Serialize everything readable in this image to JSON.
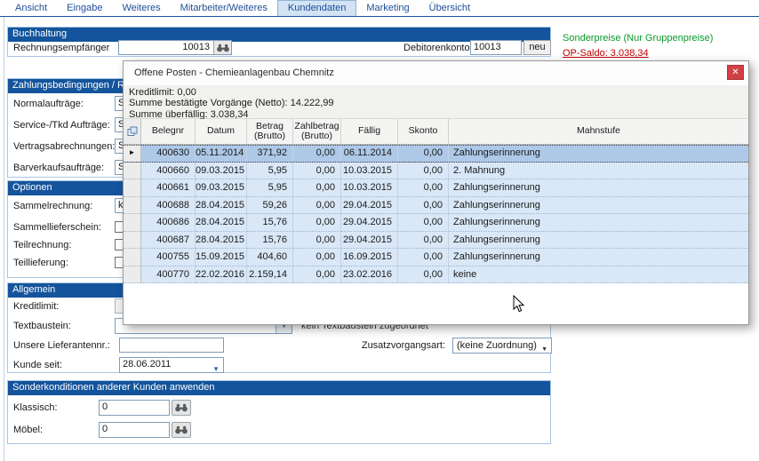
{
  "colors": {
    "accent_blue": "#14549c",
    "tab_text": "#1f4e96",
    "tab_selected_bg": "#d2e3f3",
    "green": "#089a2a",
    "red": "#c00000",
    "close_red": "#d04046",
    "row_blue": "#d9e7f7",
    "row_selected": "#aec9e8"
  },
  "tabs": {
    "items": [
      {
        "label": "Ansicht",
        "selected": false
      },
      {
        "label": "Eingabe",
        "selected": false
      },
      {
        "label": "Weiteres",
        "selected": false
      },
      {
        "label": "Mitarbeiter/Weiteres",
        "selected": false
      },
      {
        "label": "Kundendaten",
        "selected": true
      },
      {
        "label": "Marketing",
        "selected": false
      },
      {
        "label": "Übersicht",
        "selected": false
      }
    ]
  },
  "right_info": {
    "sonderpreise": "Sonderpreise (Nur Gruppenpreise)",
    "op_saldo": "OP-Saldo: 3.038,34"
  },
  "buchhaltung": {
    "title": "Buchhaltung",
    "rechnungsempfaenger_label": "Rechnungsempfänger",
    "rechnungsempfaenger_value": "10013",
    "debitorenkonto_label": "Debitorenkonto:",
    "debitorenkonto_value": "10013",
    "neu_button": "neu"
  },
  "zahlungsbedingungen": {
    "title": "Zahlungsbedingungen / Rechn",
    "rows": [
      {
        "label": "Normalaufträge:",
        "value": "S"
      },
      {
        "label": "Service-/Tkd Aufträge:",
        "value": "S"
      },
      {
        "label": "Vertragsabrechnungen:",
        "value": "S"
      },
      {
        "label": "Barverkaufsaufträge:",
        "value": "S"
      }
    ]
  },
  "optionen": {
    "title": "Optionen",
    "sammelrechnung_label": "Sammelrechnung:",
    "sammelrechnung_value": "k",
    "checkbox_labels": [
      "Sammellieferschein:",
      "Teilrechnung:",
      "Teillieferung:"
    ]
  },
  "allgemein": {
    "title": "Allgemein",
    "kreditlimit_label": "Kreditlimit:",
    "textbaustein_label": "Textbaustein:",
    "textbaustein_note": "kein Textbaustein zugeordnet",
    "lieferantennr_label": "Unsere Lieferantennr.:",
    "lieferantennr_value": "",
    "zusatzvorgangsart_label": "Zusatzvorgangsart:",
    "zusatzvorgangsart_value": "(keine Zuordnung)",
    "kunde_seit_label": "Kunde seit:",
    "kunde_seit_value": "28.06.2011"
  },
  "sonderkonditionen": {
    "title": "Sonderkonditionen anderer Kunden anwenden",
    "klassisch_label": "Klassisch:",
    "klassisch_value": "0",
    "moebel_label": "Möbel:",
    "moebel_value": "0"
  },
  "dialog": {
    "title": "Offene Posten - Chemieanlagenbau Chemnitz",
    "info_lines": [
      "Kreditlimit: 0,00",
      "Summe bestätigte Vorgänge (Netto): 14.222,99",
      "Summe überfällig: 3.038,34"
    ],
    "grid": {
      "columns": [
        "Belegnr",
        "Datum",
        "Betrag (Brutto)",
        "Zahlbetrag (Brutto)",
        "Fällig",
        "Skonto",
        "Mahnstufe"
      ],
      "selected_row": 0,
      "rows": [
        [
          "400630",
          "05.11.2014",
          "371,92",
          "0,00",
          "06.11.2014",
          "0,00",
          "Zahlungserinnerung"
        ],
        [
          "400660",
          "09.03.2015",
          "5,95",
          "0,00",
          "10.03.2015",
          "0,00",
          "2. Mahnung"
        ],
        [
          "400661",
          "09.03.2015",
          "5,95",
          "0,00",
          "10.03.2015",
          "0,00",
          "Zahlungserinnerung"
        ],
        [
          "400688",
          "28.04.2015",
          "59,26",
          "0,00",
          "29.04.2015",
          "0,00",
          "Zahlungserinnerung"
        ],
        [
          "400686",
          "28.04.2015",
          "15,76",
          "0,00",
          "29.04.2015",
          "0,00",
          "Zahlungserinnerung"
        ],
        [
          "400687",
          "28.04.2015",
          "15,76",
          "0,00",
          "29.04.2015",
          "0,00",
          "Zahlungserinnerung"
        ],
        [
          "400755",
          "15.09.2015",
          "404,60",
          "0,00",
          "16.09.2015",
          "0,00",
          "Zahlungserinnerung"
        ],
        [
          "400770",
          "22.02.2016",
          "2.159,14",
          "0,00",
          "23.02.2016",
          "0,00",
          "keine"
        ]
      ]
    }
  }
}
